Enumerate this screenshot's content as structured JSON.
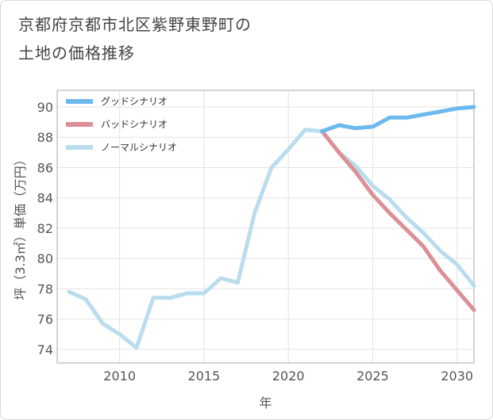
{
  "title_lines": [
    "京都府京都市北区紫野東野町の",
    "土地の価格推移"
  ],
  "chart_data": {
    "type": "line",
    "title": "京都府京都市北区紫野東野町の土地の価格推移",
    "xlabel": "年",
    "ylabel": "坪（3.3㎡）単価（万円）",
    "xlim": [
      2006.3,
      2031
    ],
    "ylim": [
      73.1,
      91.1
    ],
    "xticks": [
      2010,
      2015,
      2020,
      2025,
      2030
    ],
    "yticks": [
      74,
      76,
      78,
      80,
      82,
      84,
      86,
      88,
      90
    ],
    "grid": true,
    "legend_position": "top-left",
    "series": [
      {
        "name": "グッドシナリオ",
        "color": "#6cb9ee",
        "x": [
          2022,
          2023,
          2024,
          2025,
          2026,
          2027,
          2028,
          2029,
          2030,
          2031
        ],
        "values": [
          88.4,
          88.8,
          88.6,
          88.7,
          89.3,
          89.3,
          89.5,
          89.7,
          89.9,
          90.0
        ]
      },
      {
        "name": "バッドシナリオ",
        "color": "#dc8f95",
        "x": [
          2022,
          2023,
          2024,
          2025,
          2026,
          2027,
          2028,
          2029,
          2030,
          2031
        ],
        "values": [
          88.4,
          87.0,
          85.7,
          84.2,
          83.0,
          81.9,
          80.8,
          79.2,
          77.9,
          76.6
        ]
      },
      {
        "name": "ノーマルシナリオ",
        "color": "#b9dded",
        "x": [
          2007,
          2008,
          2009,
          2010,
          2011,
          2012,
          2013,
          2014,
          2015,
          2016,
          2017,
          2018,
          2019,
          2020,
          2021,
          2022,
          2023,
          2024,
          2025,
          2026,
          2027,
          2028,
          2029,
          2030,
          2031
        ],
        "values": [
          77.8,
          77.3,
          75.7,
          75.0,
          74.1,
          77.4,
          77.4,
          77.7,
          77.7,
          78.7,
          78.4,
          83.0,
          86.0,
          87.2,
          88.5,
          88.4,
          87.0,
          86.1,
          84.8,
          83.9,
          82.7,
          81.7,
          80.5,
          79.6,
          78.2
        ]
      }
    ]
  }
}
